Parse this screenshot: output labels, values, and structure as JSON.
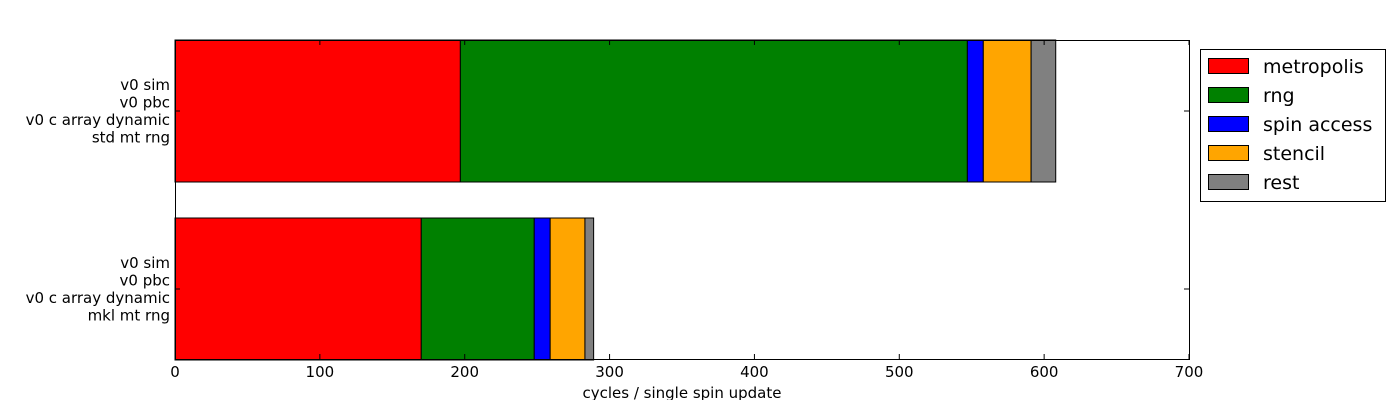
{
  "chart_data": {
    "type": "bar",
    "orientation": "horizontal",
    "stacked": true,
    "title": "",
    "xlabel": "cycles / single spin update",
    "ylabel": "",
    "xlim": [
      0,
      700
    ],
    "x_ticks": [
      "0",
      "100",
      "200",
      "300",
      "400",
      "500",
      "600",
      "700"
    ],
    "grid": false,
    "legend_position": "top-right",
    "categories": [
      {
        "lines": [
          "v0 sim",
          "v0 pbc",
          "v0 c array dynamic",
          "std mt rng"
        ]
      },
      {
        "lines": [
          "v0 sim",
          "v0 pbc",
          "v0 c array dynamic",
          "mkl mt rng"
        ]
      }
    ],
    "series": [
      {
        "name": "metropolis",
        "color": "#ff0000",
        "values": [
          197,
          170
        ]
      },
      {
        "name": "rng",
        "color": "#008000",
        "values": [
          350,
          78
        ]
      },
      {
        "name": "spin access",
        "color": "#0000ff",
        "values": [
          11,
          11
        ]
      },
      {
        "name": "stencil",
        "color": "#ffa500",
        "values": [
          33,
          24
        ]
      },
      {
        "name": "rest",
        "color": "#808080",
        "values": [
          17,
          6
        ]
      }
    ]
  }
}
